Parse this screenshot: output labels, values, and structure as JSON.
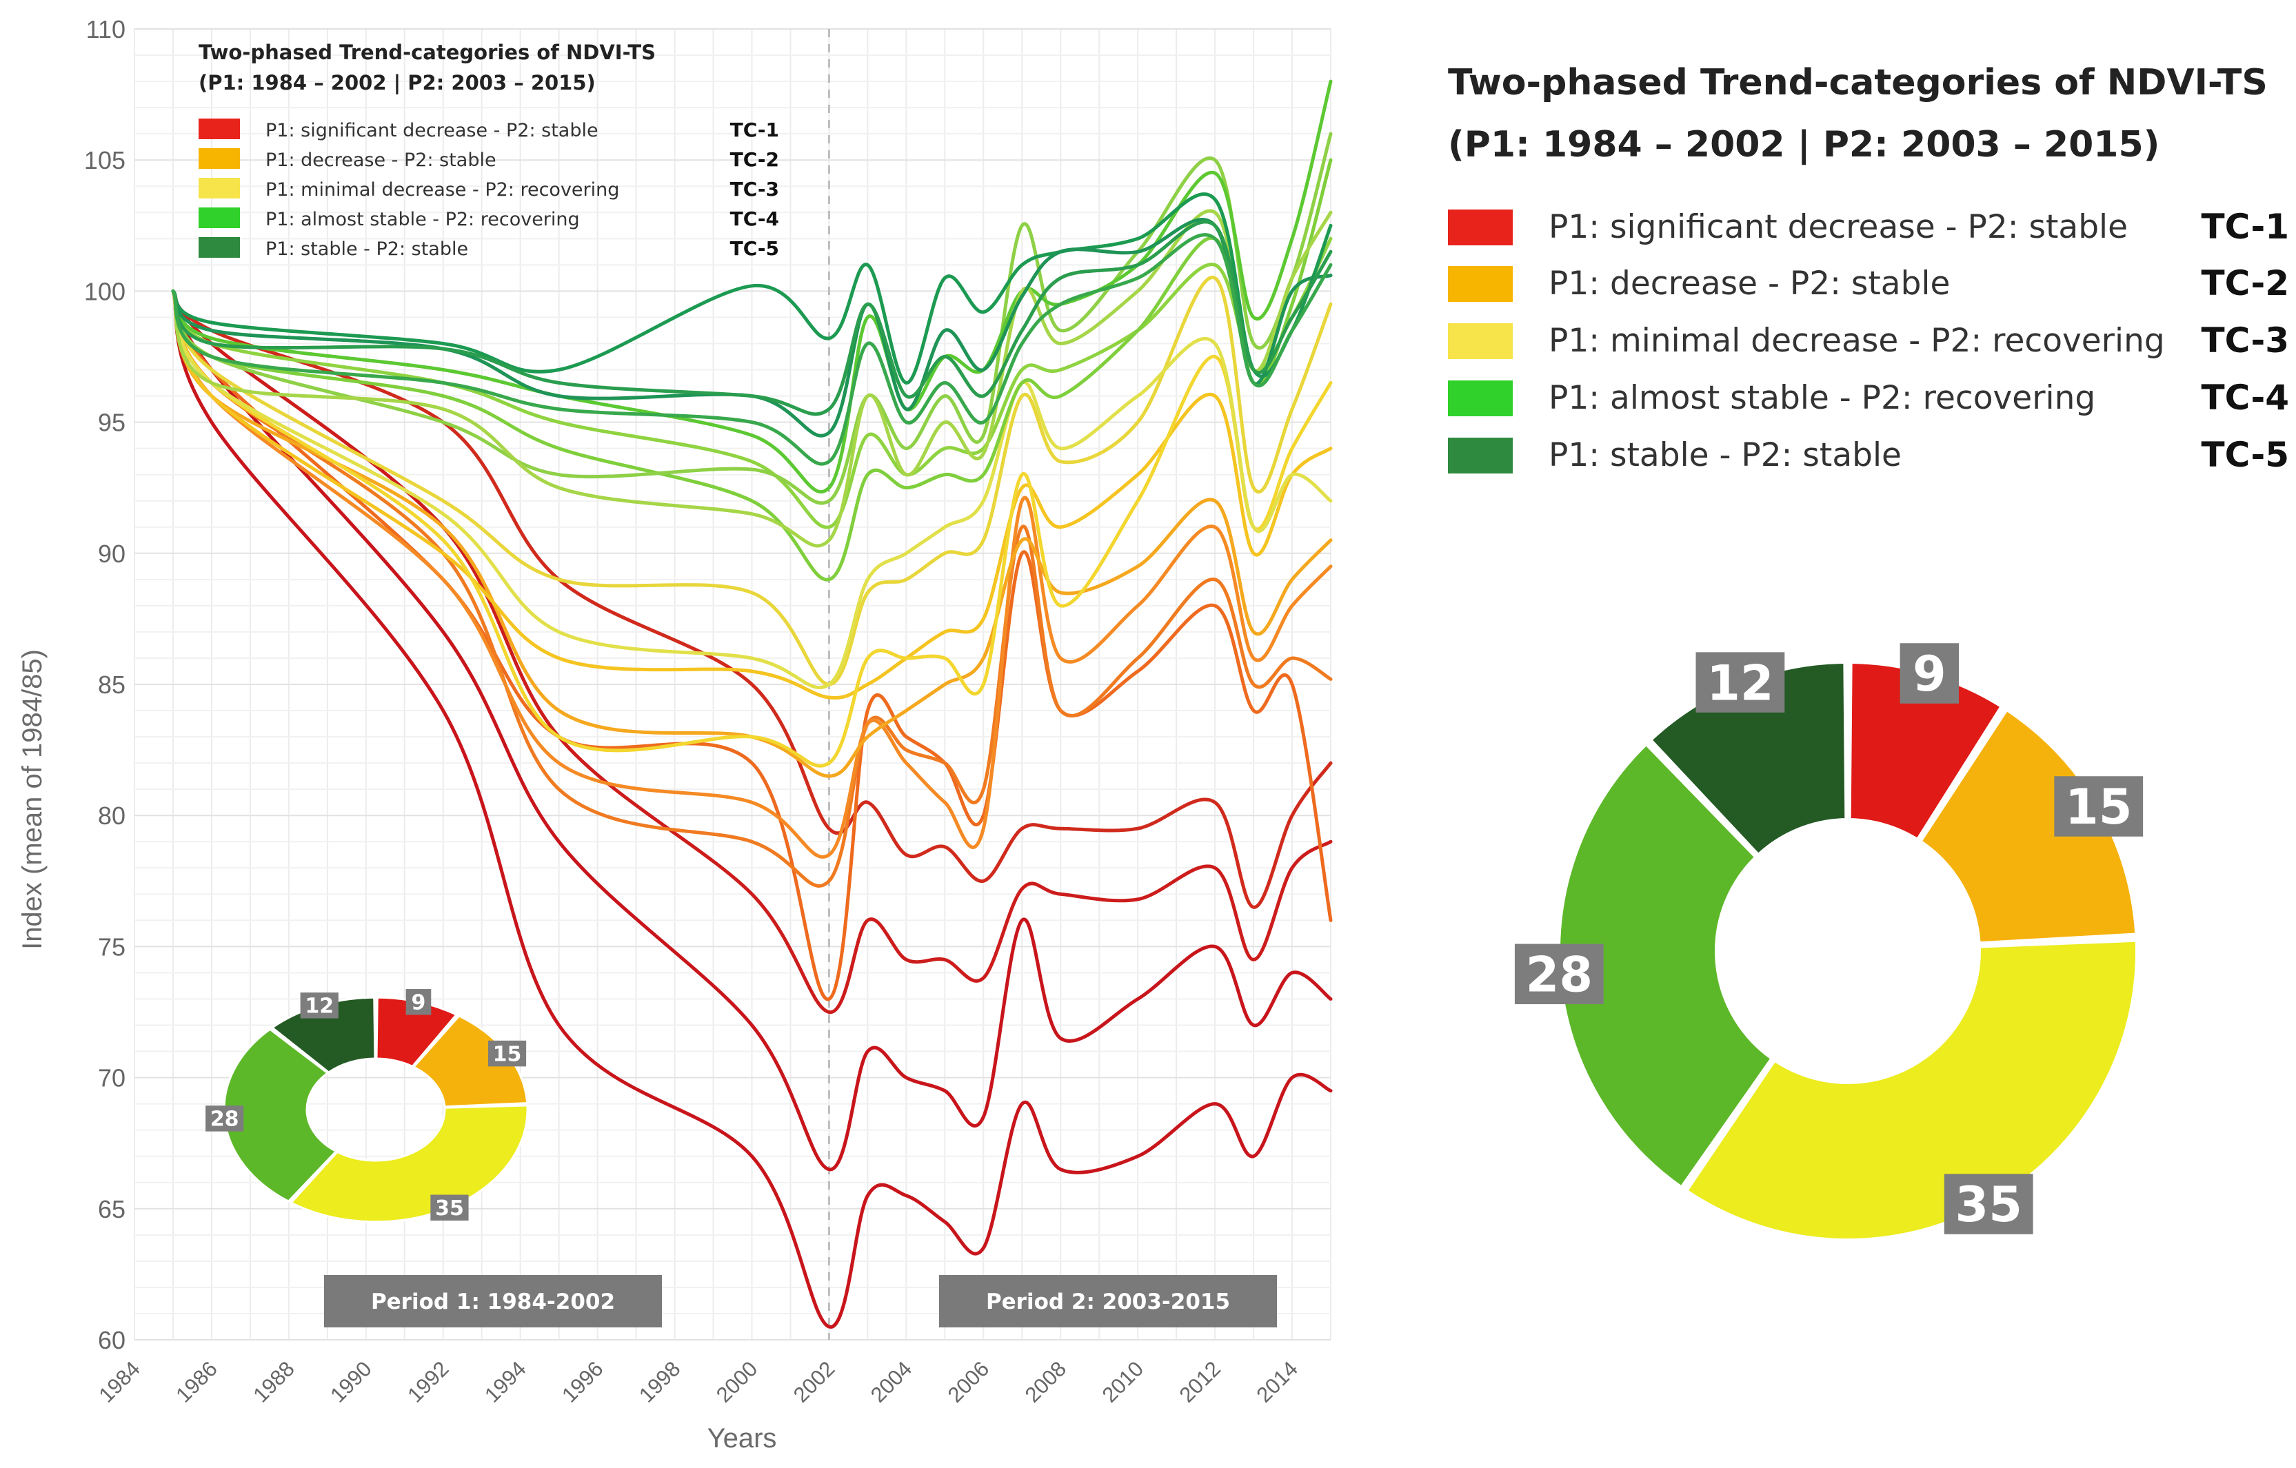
{
  "chart_data": {
    "type": "line",
    "title": "Two-phased Trend-categories of NDVI-TS",
    "subtitle": "(P1: 1984 – 2002 | P2: 2003 – 2015)",
    "xlabel": "Years",
    "ylabel": "Index (mean of 1984/85)",
    "xlim": [
      1984,
      2015
    ],
    "ylim": [
      60,
      110
    ],
    "xticks": [
      "1984",
      "1986",
      "1988",
      "1990",
      "1992",
      "1994",
      "1996",
      "1998",
      "2000",
      "2002",
      "2004",
      "2006",
      "2008",
      "2010",
      "2012",
      "2014"
    ],
    "yticks": [
      "60",
      "65",
      "70",
      "75",
      "80",
      "85",
      "90",
      "95",
      "100",
      "105",
      "110"
    ],
    "period_divider_x": 2002,
    "legend": [
      {
        "color": "#e8231c",
        "label": "P1: significant decrease - P2: stable",
        "code": "TC-1"
      },
      {
        "color": "#f7b500",
        "label": "P1: decrease - P2: stable",
        "code": "TC-2"
      },
      {
        "color": "#f7e34a",
        "label": "P1: minimal decrease - P2: recovering",
        "code": "TC-3"
      },
      {
        "color": "#2fd12a",
        "label": "P1: almost stable - P2: recovering",
        "code": "TC-4"
      },
      {
        "color": "#2d8a3e",
        "label": "P1: stable - P2: stable",
        "code": "TC-5"
      }
    ],
    "period_labels": [
      "Period 1: 1984-2002",
      "Period 2: 2003-2015"
    ],
    "x": [
      1985,
      1986,
      1992,
      1995,
      2000,
      2002,
      2003,
      2004,
      2005,
      2006,
      2007,
      2008,
      2010,
      2012,
      2013,
      2014,
      2015
    ],
    "series": [
      {
        "color": "#c8151b",
        "values": [
          100,
          95,
          84,
          72,
          67,
          60.5,
          65.5,
          65.5,
          64.5,
          63.5,
          69,
          66.5,
          67,
          69,
          67,
          70,
          69.5
        ]
      },
      {
        "color": "#c8151b",
        "values": [
          100,
          97,
          87,
          79,
          72,
          66.5,
          71,
          70,
          69.5,
          68.5,
          76,
          71.5,
          73,
          75,
          72,
          74,
          73
        ]
      },
      {
        "color": "#cc1c1b",
        "values": [
          100,
          98,
          91,
          83,
          77,
          72.5,
          76,
          74.5,
          74.5,
          73.8,
          77.2,
          77,
          76.8,
          78,
          74.5,
          78,
          79
        ]
      },
      {
        "color": "#d02a1c",
        "values": [
          100,
          98.5,
          95,
          89,
          85,
          79.5,
          80.5,
          78.5,
          78.8,
          77.5,
          79.5,
          79.5,
          79.5,
          80.5,
          76.5,
          80,
          82
        ]
      },
      {
        "color": "#ee6a1e",
        "values": [
          100,
          97,
          89,
          83,
          82,
          73,
          84,
          83,
          82,
          80,
          90,
          84,
          85.5,
          88,
          84,
          85,
          76
        ]
      },
      {
        "color": "#f07a20",
        "values": [
          100,
          96.5,
          90,
          81,
          79,
          77.5,
          83.5,
          82.5,
          82,
          81,
          91,
          84,
          86,
          89,
          85,
          86,
          85.2
        ]
      },
      {
        "color": "#f58a24",
        "values": [
          100,
          96,
          89,
          82,
          80.5,
          78.5,
          83.5,
          82,
          80.5,
          79.5,
          92,
          86,
          88,
          91,
          86,
          88,
          89.5
        ]
      },
      {
        "color": "#f5a81e",
        "values": [
          100,
          96,
          91,
          84,
          83,
          81.5,
          83,
          84,
          85,
          86,
          90.5,
          88.5,
          89.5,
          92,
          87,
          89,
          90.5
        ]
      },
      {
        "color": "#f5c420",
        "values": [
          100,
          96,
          90,
          86,
          85.5,
          84.5,
          85,
          86,
          87,
          87.5,
          92.5,
          91,
          93,
          96,
          90,
          93,
          94
        ]
      },
      {
        "color": "#f3d62e",
        "values": [
          100,
          96.5,
          90.5,
          83,
          83,
          82,
          86,
          86,
          86,
          85,
          93,
          88,
          92,
          97.5,
          91,
          94,
          96.5
        ]
      },
      {
        "color": "#e8d63a",
        "values": [
          100,
          97,
          92,
          89,
          88.5,
          85,
          88.5,
          89,
          90,
          90.5,
          96,
          93.5,
          95,
          100.5,
          92.5,
          95.5,
          99.5
        ]
      },
      {
        "color": "#e2e04a",
        "values": [
          100,
          96.5,
          91.5,
          87,
          86,
          85,
          89,
          90,
          91,
          92,
          96.5,
          94,
          96,
          98,
          91,
          93,
          92
        ]
      },
      {
        "color": "#8fd340",
        "values": [
          100,
          98,
          96.5,
          95,
          93.5,
          91,
          94.5,
          93,
          94,
          94,
          97,
          97,
          98.5,
          101,
          97,
          99,
          102
        ]
      },
      {
        "color": "#7fcf3c",
        "values": [
          100,
          97.5,
          96,
          94,
          92,
          89,
          93,
          92.5,
          93,
          93,
          96.5,
          96,
          98.5,
          102,
          96.5,
          99.5,
          105
        ]
      },
      {
        "color": "#8ed046",
        "values": [
          100,
          97.5,
          95,
          93,
          93.2,
          92,
          96,
          94,
          96,
          94.5,
          102.5,
          98.5,
          101.5,
          105,
          98,
          100.5,
          106
        ]
      },
      {
        "color": "#5cc832",
        "values": [
          100,
          98.2,
          97,
          96,
          94.5,
          92.5,
          99,
          95.5,
          97.5,
          97,
          100,
          99.5,
          101,
          104.5,
          99,
          102,
          108
        ]
      },
      {
        "color": "#a6d648",
        "values": [
          100,
          96.5,
          95.5,
          92.5,
          91.5,
          90.5,
          96,
          93,
          95,
          93.8,
          100,
          98,
          100,
          103,
          97,
          100.5,
          103
        ]
      },
      {
        "color": "#1c9a52",
        "values": [
          100,
          98.8,
          98,
          97,
          100.2,
          98.2,
          101,
          96.5,
          100.5,
          99.2,
          101,
          101.5,
          102,
          103.5,
          97,
          98.5,
          102.5
        ]
      },
      {
        "color": "#1e9456",
        "values": [
          100,
          98.5,
          97.8,
          96,
          96,
          94.6,
          99.5,
          95.5,
          98.5,
          97,
          99.8,
          101.5,
          101.5,
          102.5,
          96.5,
          100,
          100.6
        ]
      },
      {
        "color": "#2a9d4e",
        "values": [
          100,
          98,
          97.8,
          96.5,
          96,
          95.5,
          99.5,
          96,
          97.5,
          96,
          98.5,
          100.5,
          101,
          102.5,
          97,
          99,
          101.5
        ]
      },
      {
        "color": "#38a84c",
        "values": [
          100,
          97.5,
          96.5,
          95.5,
          95,
          93.5,
          98,
          95,
          96.5,
          95,
          98,
          99.5,
          100.5,
          102,
          96.5,
          98.5,
          101
        ]
      }
    ],
    "donut": {
      "type": "pie",
      "segments": [
        {
          "label": "9",
          "value": 9,
          "color": "#e01a17"
        },
        {
          "label": "15",
          "value": 15,
          "color": "#f6b20c"
        },
        {
          "label": "35",
          "value": 35,
          "color": "#ecec1e"
        },
        {
          "label": "28",
          "value": 28,
          "color": "#5db829"
        },
        {
          "label": "12",
          "value": 12,
          "color": "#245a24"
        }
      ]
    }
  }
}
